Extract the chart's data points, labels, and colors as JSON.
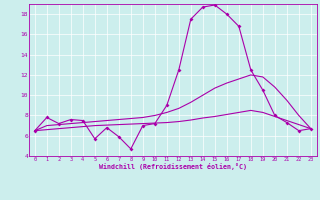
{
  "xlabel": "Windchill (Refroidissement éolien,°C)",
  "bg_color": "#cceeed",
  "line_color": "#aa00aa",
  "x_values": [
    0,
    1,
    2,
    3,
    4,
    5,
    6,
    7,
    8,
    9,
    10,
    11,
    12,
    13,
    14,
    15,
    16,
    17,
    18,
    19,
    20,
    21,
    22,
    23
  ],
  "line1": [
    6.5,
    7.8,
    7.2,
    7.6,
    7.5,
    5.7,
    6.8,
    5.9,
    4.7,
    7.0,
    7.2,
    9.0,
    12.5,
    17.5,
    18.7,
    18.9,
    18.0,
    16.8,
    12.5,
    10.5,
    8.0,
    7.3,
    6.5,
    6.7
  ],
  "line2": [
    6.5,
    7.0,
    7.1,
    7.2,
    7.3,
    7.4,
    7.5,
    7.6,
    7.7,
    7.8,
    8.0,
    8.3,
    8.7,
    9.3,
    10.0,
    10.7,
    11.2,
    11.6,
    12.0,
    11.8,
    10.8,
    9.5,
    8.0,
    6.7
  ],
  "line3": [
    6.5,
    6.6,
    6.7,
    6.8,
    6.9,
    7.0,
    7.05,
    7.1,
    7.15,
    7.2,
    7.25,
    7.3,
    7.4,
    7.55,
    7.75,
    7.9,
    8.1,
    8.3,
    8.5,
    8.3,
    7.9,
    7.5,
    7.1,
    6.7
  ],
  "ylim": [
    4,
    19
  ],
  "xlim": [
    -0.5,
    23.5
  ],
  "yticks": [
    4,
    6,
    8,
    10,
    12,
    14,
    16,
    18
  ],
  "xticks": [
    0,
    1,
    2,
    3,
    4,
    5,
    6,
    7,
    8,
    9,
    10,
    11,
    12,
    13,
    14,
    15,
    16,
    17,
    18,
    19,
    20,
    21,
    22,
    23
  ]
}
